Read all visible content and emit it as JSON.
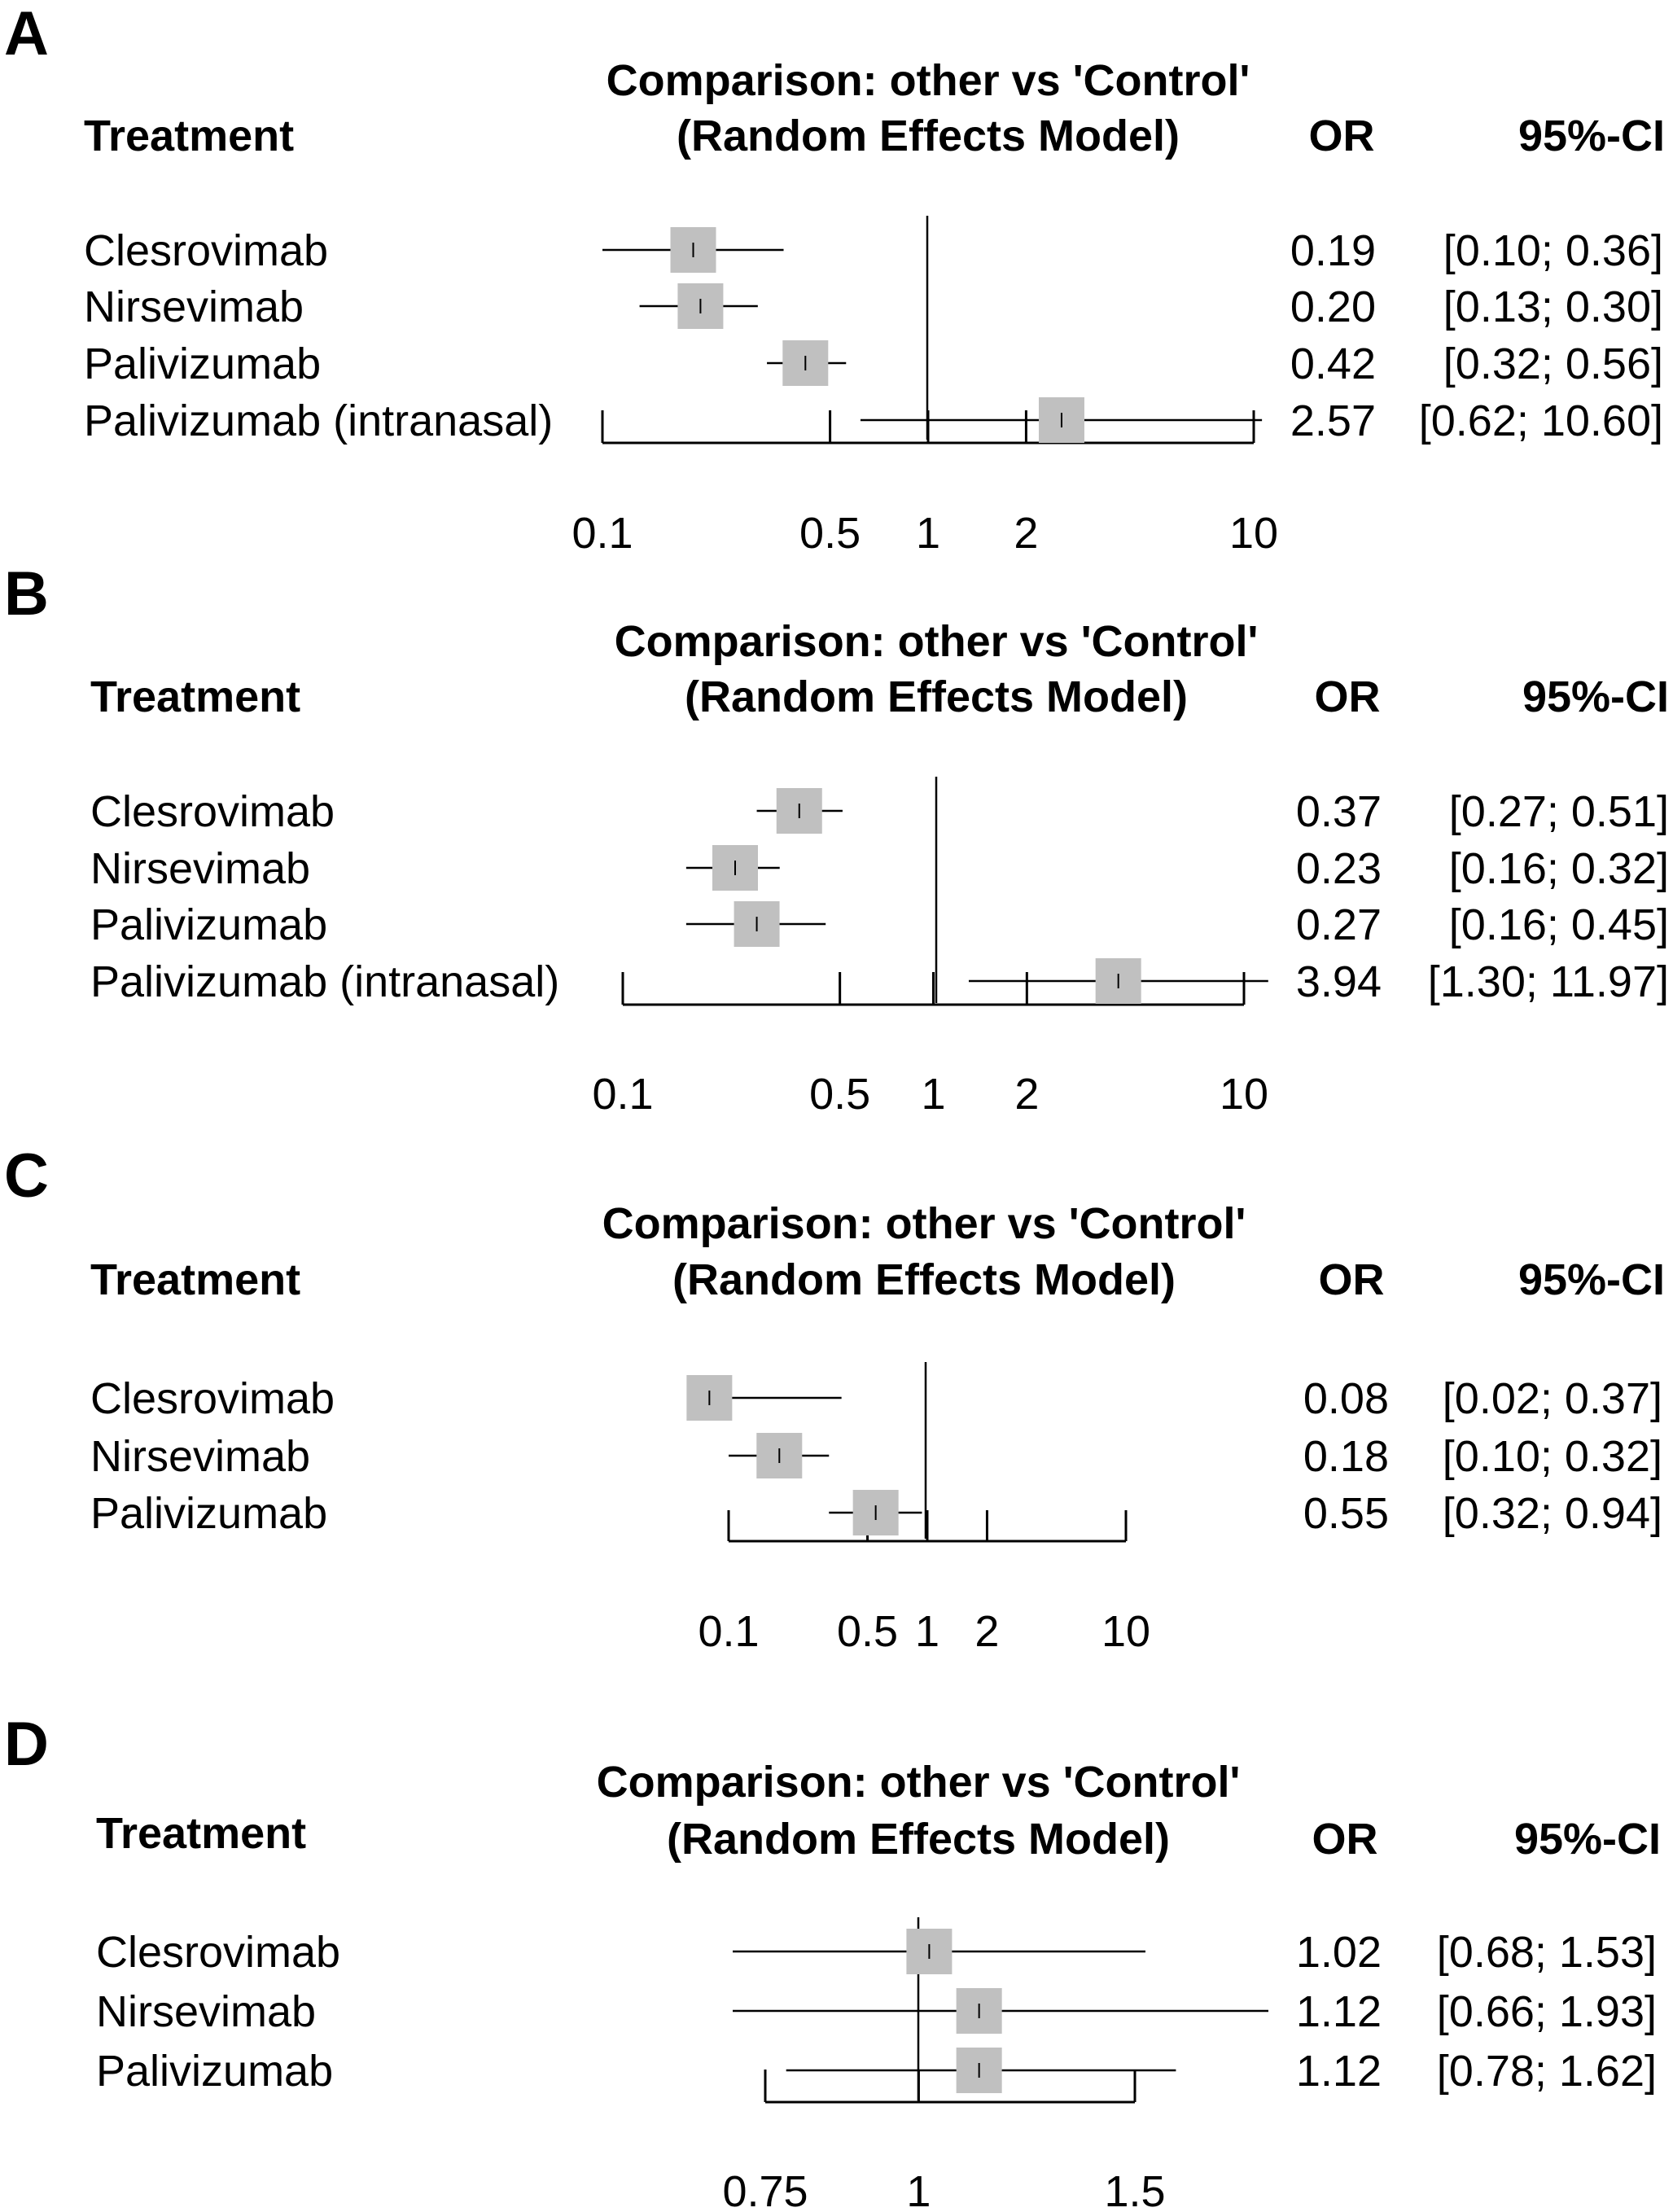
{
  "chart_data": [
    {
      "panel": "A",
      "type": "forest",
      "title": "Comparison: other vs 'Control'",
      "subtitle": "(Random Effects Model)",
      "col_treatment": "Treatment",
      "col_or": "OR",
      "col_ci": "95%-CI",
      "scale": "log",
      "xlim": [
        0.1,
        10
      ],
      "ticks": [
        0.1,
        0.5,
        1,
        2,
        10
      ],
      "tick_labels": [
        "0.1",
        "0.5",
        "1",
        "2",
        "10"
      ],
      "rows": [
        {
          "label": "Clesrovimab",
          "or": 0.19,
          "lo": 0.1,
          "hi": 0.36,
          "or_text": "0.19",
          "ci_text": "[0.10;  0.36]"
        },
        {
          "label": "Nirsevimab",
          "or": 0.2,
          "lo": 0.13,
          "hi": 0.3,
          "or_text": "0.20",
          "ci_text": "[0.13;  0.30]"
        },
        {
          "label": "Palivizumab",
          "or": 0.42,
          "lo": 0.32,
          "hi": 0.56,
          "or_text": "0.42",
          "ci_text": "[0.32;  0.56]"
        },
        {
          "label": "Palivizumab (intranasal)",
          "or": 2.57,
          "lo": 0.62,
          "hi": 10.6,
          "or_text": "2.57",
          "ci_text": "[0.62; 10.60]"
        }
      ]
    },
    {
      "panel": "B",
      "type": "forest",
      "title": "Comparison: other vs 'Control'",
      "subtitle": "(Random Effects Model)",
      "col_treatment": "Treatment",
      "col_or": "OR",
      "col_ci": "95%-CI",
      "scale": "log",
      "xlim": [
        0.1,
        10
      ],
      "ticks": [
        0.1,
        0.5,
        1,
        2,
        10
      ],
      "tick_labels": [
        "0.1",
        "0.5",
        "1",
        "2",
        "10"
      ],
      "rows": [
        {
          "label": "Clesrovimab",
          "or": 0.37,
          "lo": 0.27,
          "hi": 0.51,
          "or_text": "0.37",
          "ci_text": "[0.27;  0.51]"
        },
        {
          "label": "Nirsevimab",
          "or": 0.23,
          "lo": 0.16,
          "hi": 0.32,
          "or_text": "0.23",
          "ci_text": "[0.16;  0.32]"
        },
        {
          "label": "Palivizumab",
          "or": 0.27,
          "lo": 0.16,
          "hi": 0.45,
          "or_text": "0.27",
          "ci_text": "[0.16;  0.45]"
        },
        {
          "label": "Palivizumab (intranasal)",
          "or": 3.94,
          "lo": 1.3,
          "hi": 11.97,
          "or_text": "3.94",
          "ci_text": "[1.30; 11.97]"
        }
      ]
    },
    {
      "panel": "C",
      "type": "forest",
      "title": "Comparison: other vs 'Control'",
      "subtitle": "(Random Effects Model)",
      "col_treatment": "Treatment",
      "col_or": "OR",
      "col_ci": "95%-CI",
      "scale": "log",
      "xlim": [
        0.1,
        10
      ],
      "ticks": [
        0.1,
        0.5,
        1,
        2,
        10
      ],
      "tick_labels": [
        "0.1",
        "0.5",
        "1",
        "2",
        "10"
      ],
      "rows": [
        {
          "label": "Clesrovimab",
          "or": 0.08,
          "lo": 0.02,
          "hi": 0.37,
          "or_text": "0.08",
          "ci_text": "[0.02; 0.37]"
        },
        {
          "label": "Nirsevimab",
          "or": 0.18,
          "lo": 0.1,
          "hi": 0.32,
          "or_text": "0.18",
          "ci_text": "[0.10; 0.32]"
        },
        {
          "label": "Palivizumab",
          "or": 0.55,
          "lo": 0.32,
          "hi": 0.94,
          "or_text": "0.55",
          "ci_text": "[0.32; 0.94]"
        }
      ]
    },
    {
      "panel": "D",
      "type": "forest",
      "title": "Comparison: other vs 'Control'",
      "subtitle": "(Random Effects Model)",
      "col_treatment": "Treatment",
      "col_or": "OR",
      "col_ci": "95%-CI",
      "scale": "log",
      "xlim": [
        0.75,
        1.5
      ],
      "ticks": [
        0.75,
        1,
        1.5
      ],
      "tick_labels": [
        "0.75",
        "1",
        "1.5"
      ],
      "rows": [
        {
          "label": "Clesrovimab",
          "or": 1.02,
          "lo": 0.68,
          "hi": 1.53,
          "or_text": "1.02",
          "ci_text": "[0.68; 1.53]"
        },
        {
          "label": "Nirsevimab",
          "or": 1.12,
          "lo": 0.66,
          "hi": 1.93,
          "or_text": "1.12",
          "ci_text": "[0.66; 1.93]"
        },
        {
          "label": "Palivizumab",
          "or": 1.12,
          "lo": 0.78,
          "hi": 1.62,
          "or_text": "1.12",
          "ci_text": "[0.78; 1.62]"
        }
      ]
    }
  ]
}
